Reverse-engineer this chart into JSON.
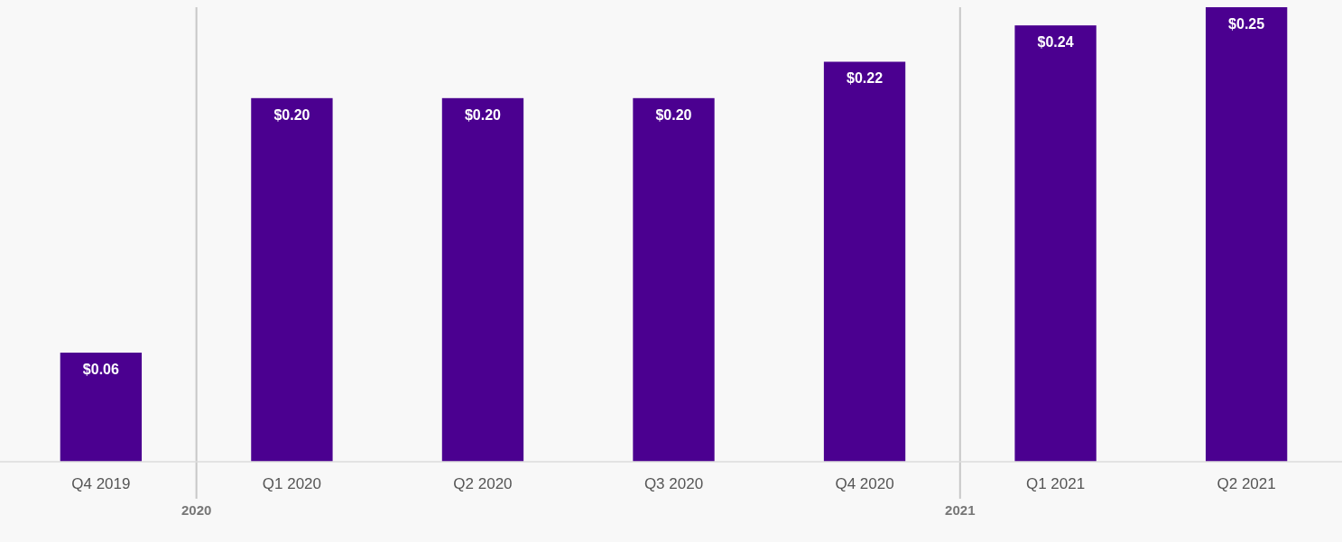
{
  "chart_data": {
    "type": "bar",
    "categories": [
      "Q4 2019",
      "Q1 2020",
      "Q2 2020",
      "Q3 2020",
      "Q4 2020",
      "Q1 2021",
      "Q2 2021"
    ],
    "values": [
      0.06,
      0.2,
      0.2,
      0.2,
      0.22,
      0.24,
      0.25
    ],
    "value_labels": [
      "$0.06",
      "$0.20",
      "$0.20",
      "$0.20",
      "$0.22",
      "$0.24",
      "$0.25"
    ],
    "color": "#4b0090",
    "annotations": [
      "2020",
      "2021"
    ]
  }
}
